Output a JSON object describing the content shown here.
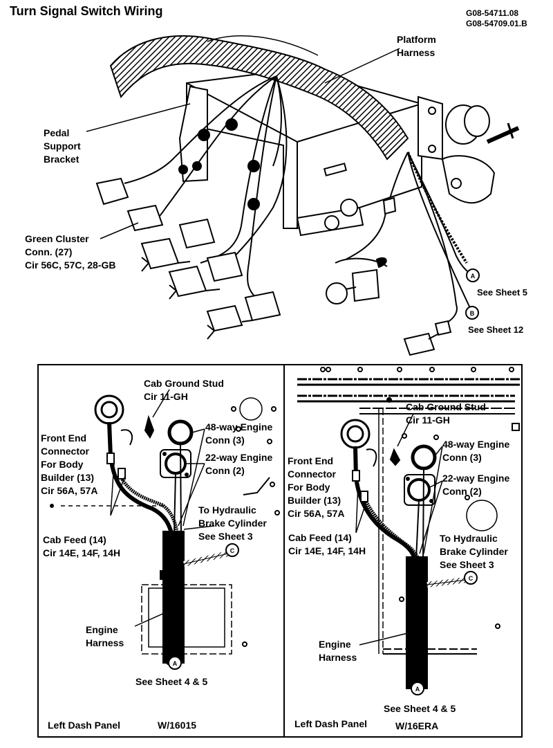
{
  "title": "Turn Signal Switch Wiring",
  "codes": [
    "G08-54711.08",
    "G08-54709.01.B"
  ],
  "top": {
    "platform_harness": "Platform\nHarness",
    "pedal_bracket": "Pedal\nSupport\nBracket",
    "green_cluster": "Green Cluster\nConn. (27)\nCir 56C, 57C, 28-GB",
    "see_sheet_5": "See Sheet 5",
    "see_sheet_12": "See Sheet 12",
    "conn_a": "A",
    "conn_b": "B"
  },
  "left_panel": {
    "cab_ground": "Cab Ground Stud\nCir 11-GH",
    "engine48": "48-way Engine\nConn (3)",
    "engine22": "22-way Engine\nConn (2)",
    "front_end": "Front End\nConnector\nFor Body\nBuilder (13)\nCir 56A, 57A",
    "hydraulic": "To Hydraulic\nBrake Cylinder\nSee Sheet 3",
    "cab_feed": "Cab Feed (14)\nCir 14E, 14F, 14H",
    "engine_harness": "Engine\nHarness",
    "see_sheet_45": "See Sheet 4 & 5",
    "footer": "Left Dash Panel",
    "model": "W/16015",
    "conn_a": "A",
    "conn_c": "C"
  },
  "right_panel": {
    "cab_ground": "Cab Ground Stud\nCir 11-GH",
    "engine48": "48-way Engine\nConn (3)",
    "engine22": "22-way Engine\nConn (2)",
    "front_end": "Front End\nConnector\nFor Body\nBuilder (13)\nCir 56A, 57A",
    "hydraulic": "To Hydraulic\nBrake Cylinder\nSee Sheet 3",
    "cab_feed": "Cab Feed (14)\nCir 14E, 14F, 14H",
    "engine_harness": "Engine\nHarness",
    "see_sheet_45": "See Sheet 4 & 5",
    "footer": "Left Dash Panel",
    "model": "W/16ERA",
    "conn_a": "A",
    "conn_c": "C"
  }
}
